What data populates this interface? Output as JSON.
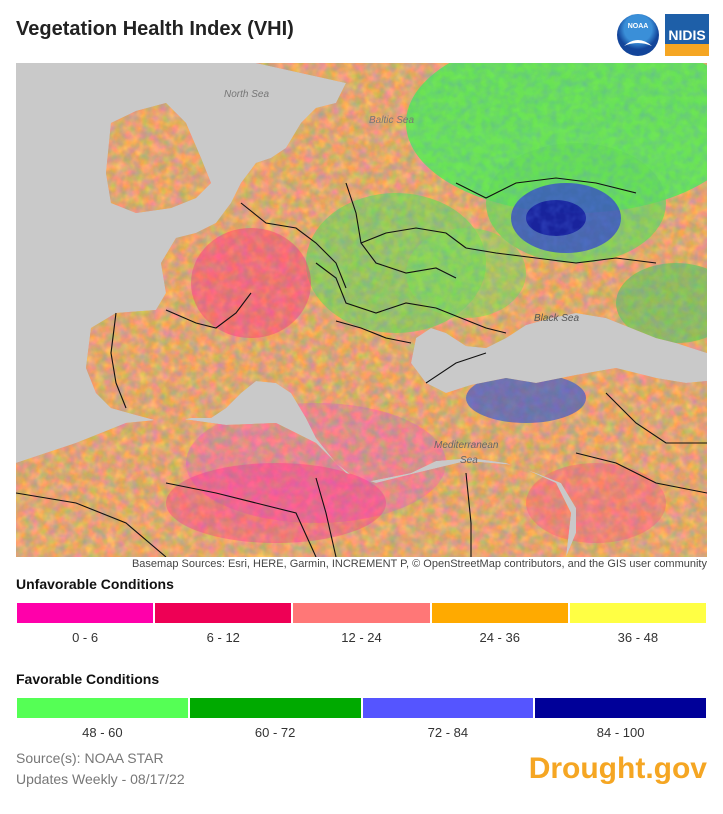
{
  "title": "Vegetation Health Index (VHI)",
  "logos": {
    "noaa": "NOAA",
    "nidis": "NIDIS"
  },
  "map": {
    "labels": {
      "north_sea": "North Sea",
      "baltic_sea": "Baltic Sea",
      "black_sea": "Black Sea",
      "mediterranean_1": "Mediterranean",
      "mediterranean_2": "Sea"
    },
    "attribution": "Basemap Sources: Esri, HERE, Garmin, INCREMENT P, © OpenStreetMap contributors, and the GIS user community",
    "colors": {
      "water": "#c9c9c9",
      "border": "#111111"
    }
  },
  "legend": {
    "unfavorable": {
      "title": "Unfavorable Conditions",
      "items": [
        {
          "label": "0 - 6",
          "color": "#ff00aa"
        },
        {
          "label": "6 - 12",
          "color": "#ee0055"
        },
        {
          "label": "12 - 24",
          "color": "#ff7777"
        },
        {
          "label": "24 - 36",
          "color": "#ffaa00"
        },
        {
          "label": "36 - 48",
          "color": "#ffff44"
        }
      ]
    },
    "favorable": {
      "title": "Favorable Conditions",
      "items": [
        {
          "label": "48 - 60",
          "color": "#55ff55"
        },
        {
          "label": "60 - 72",
          "color": "#00aa00"
        },
        {
          "label": "72 - 84",
          "color": "#5555ff"
        },
        {
          "label": "84 - 100",
          "color": "#000099"
        }
      ]
    }
  },
  "footer": {
    "source": "Source(s): NOAA STAR",
    "updates": "Updates Weekly - 08/17/22",
    "brand": "Drought.gov"
  }
}
